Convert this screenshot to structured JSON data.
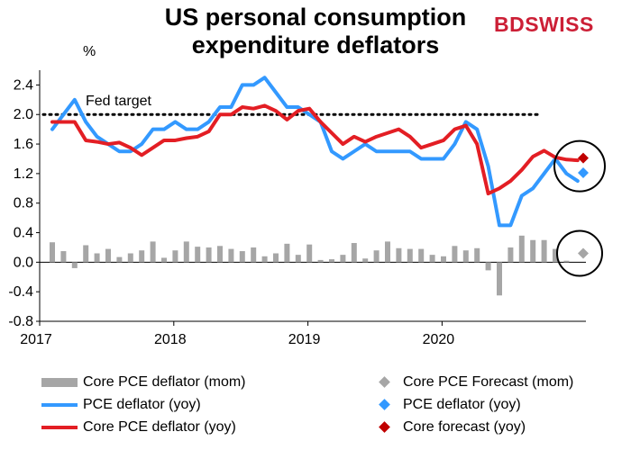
{
  "brand": {
    "name": "BDSWISS",
    "color": "#cc1f36"
  },
  "chart_data": {
    "title": "US personal consumption expenditure deflators",
    "title_lines": [
      "US personal consumption",
      "expenditure deflators"
    ],
    "ylabel": "%",
    "type": "line",
    "ylim": [
      -0.8,
      2.6
    ],
    "yticks": [
      "2.4",
      "2.0",
      "1.6",
      "1.2",
      "0.8",
      "0.4",
      "0.0",
      "-0.4",
      "-0.8"
    ],
    "ytick_values": [
      2.4,
      2.0,
      1.6,
      1.2,
      0.8,
      0.4,
      0.0,
      -0.4,
      -0.8
    ],
    "xlabels": [
      {
        "label": "2017",
        "index": 0
      },
      {
        "label": "2018",
        "index": 12
      },
      {
        "label": "2019",
        "index": 24
      },
      {
        "label": "2020",
        "index": 36
      }
    ],
    "reference_line": {
      "label": "Fed target",
      "value": 2.0
    },
    "colors": {
      "mom": "#a6a6a6",
      "pce": "#3399ff",
      "core": "#e31e24",
      "pce_fc": "#3399ff",
      "core_fc": "#c00000",
      "mom_fc": "#a6a6a6"
    },
    "series": [
      {
        "name": "Core PCE deflator (mom)",
        "kind": "bar",
        "color": "#a6a6a6",
        "values": [
          0.27,
          0.15,
          -0.08,
          0.23,
          0.12,
          0.18,
          0.07,
          0.12,
          0.16,
          0.28,
          0.06,
          0.16,
          0.28,
          0.21,
          0.2,
          0.22,
          0.18,
          0.15,
          0.2,
          0.08,
          0.12,
          0.25,
          0.1,
          0.24,
          0.03,
          0.04,
          0.1,
          0.26,
          0.05,
          0.16,
          0.28,
          0.19,
          0.18,
          0.18,
          0.1,
          0.08,
          0.22,
          0.16,
          0.19,
          -0.11,
          -0.45,
          0.2,
          0.36,
          0.3,
          0.3,
          0.18,
          0.02
        ]
      },
      {
        "name": "PCE deflator (yoy)",
        "kind": "line",
        "color": "#3399ff",
        "values": [
          1.8,
          2.0,
          2.2,
          1.9,
          1.7,
          1.6,
          1.5,
          1.5,
          1.6,
          1.8,
          1.8,
          1.9,
          1.8,
          1.8,
          1.9,
          2.1,
          2.1,
          2.4,
          2.4,
          2.5,
          2.3,
          2.1,
          2.1,
          2.0,
          1.9,
          1.5,
          1.4,
          1.5,
          1.6,
          1.5,
          1.5,
          1.5,
          1.5,
          1.4,
          1.4,
          1.4,
          1.6,
          1.9,
          1.8,
          1.3,
          0.5,
          0.5,
          0.9,
          1.0,
          1.2,
          1.4,
          1.2,
          1.1
        ]
      },
      {
        "name": "Core PCE deflator (yoy)",
        "kind": "line",
        "color": "#e31e24",
        "values": [
          1.9,
          1.9,
          1.9,
          1.65,
          1.63,
          1.6,
          1.62,
          1.55,
          1.45,
          1.55,
          1.65,
          1.65,
          1.68,
          1.7,
          1.77,
          2.0,
          2.0,
          2.1,
          2.08,
          2.12,
          2.05,
          1.93,
          2.05,
          2.08,
          1.9,
          1.75,
          1.6,
          1.7,
          1.63,
          1.7,
          1.75,
          1.8,
          1.7,
          1.55,
          1.6,
          1.65,
          1.8,
          1.85,
          1.6,
          0.93,
          1.0,
          1.1,
          1.25,
          1.43,
          1.51,
          1.42,
          1.39,
          1.38
        ]
      },
      {
        "name": "Core PCE Forecast (mom)",
        "kind": "marker",
        "color": "#a6a6a6",
        "x_index": 47.5,
        "value": 0.12
      },
      {
        "name": "PCE deflator (yoy)",
        "kind": "marker",
        "color": "#3399ff",
        "x_index": 47.5,
        "value": 1.21
      },
      {
        "name": "Core forecast (yoy)",
        "kind": "marker",
        "color": "#c00000",
        "x_index": 47.5,
        "value": 1.41
      }
    ],
    "legend": [
      {
        "label": "Core PCE deflator (mom)",
        "type": "bar",
        "color": "#a6a6a6"
      },
      {
        "label": "Core PCE Forecast (mom)",
        "type": "diamond",
        "color": "#a6a6a6"
      },
      {
        "label": "PCE deflator (yoy)",
        "type": "line",
        "color": "#3399ff"
      },
      {
        "label": "PCE deflator (yoy)",
        "type": "diamond",
        "color": "#3399ff"
      },
      {
        "label": "Core PCE deflator (yoy)",
        "type": "line",
        "color": "#e31e24"
      },
      {
        "label": "Core forecast (yoy)",
        "type": "diamond",
        "color": "#c00000"
      }
    ]
  }
}
